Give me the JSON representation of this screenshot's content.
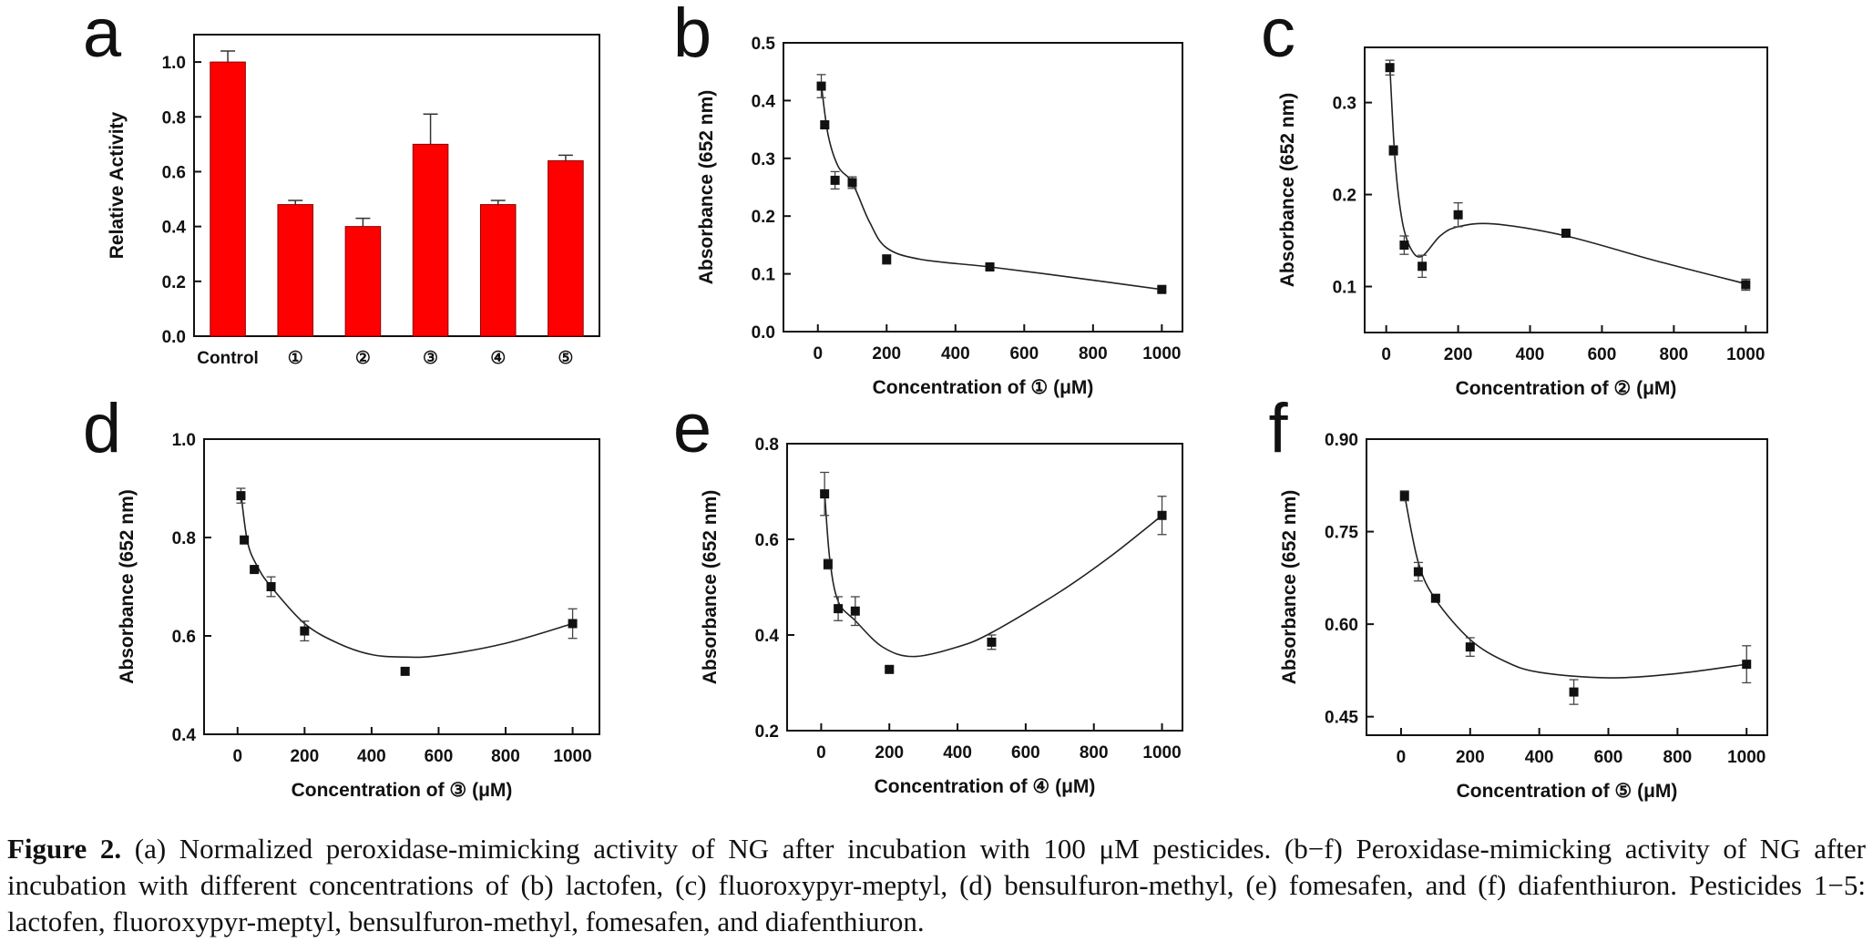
{
  "chart_data": [
    {
      "panel": "a",
      "type": "bar",
      "categories": [
        "Control",
        "①",
        "②",
        "③",
        "④",
        "⑤"
      ],
      "values": [
        1.0,
        0.48,
        0.4,
        0.7,
        0.48,
        0.64
      ],
      "errors": [
        0.04,
        0.015,
        0.03,
        0.11,
        0.015,
        0.02
      ],
      "ylabel": "Relative Activity",
      "xlabel": "",
      "ylim": [
        0,
        1.1
      ],
      "yticks": [
        0.0,
        0.2,
        0.4,
        0.6,
        0.8,
        1.0
      ],
      "bar_color": "#ff0000"
    },
    {
      "panel": "b",
      "type": "scatter",
      "x": [
        10,
        20,
        50,
        100,
        200,
        500,
        1000
      ],
      "y": [
        0.425,
        0.358,
        0.262,
        0.258,
        0.125,
        0.112,
        0.073
      ],
      "errors": [
        0.02,
        0.005,
        0.015,
        0.01,
        0.008,
        0.004,
        0.004
      ],
      "fit": [
        [
          10,
          0.428
        ],
        [
          30,
          0.34
        ],
        [
          60,
          0.285
        ],
        [
          100,
          0.258
        ],
        [
          150,
          0.19
        ],
        [
          200,
          0.145
        ],
        [
          300,
          0.125
        ],
        [
          500,
          0.112
        ],
        [
          750,
          0.093
        ],
        [
          1000,
          0.073
        ]
      ],
      "xlabel": "Concentration of ① (μM)",
      "ylabel": "Absorbance (652 nm)",
      "xlim": [
        -100,
        1060
      ],
      "ylim": [
        0,
        0.5
      ],
      "xticks": [
        0,
        200,
        400,
        600,
        800,
        1000
      ],
      "yticks": [
        0.0,
        0.1,
        0.2,
        0.3,
        0.4,
        0.5
      ]
    },
    {
      "panel": "c",
      "type": "scatter",
      "x": [
        10,
        20,
        50,
        100,
        200,
        500,
        1000
      ],
      "y": [
        0.338,
        0.248,
        0.145,
        0.122,
        0.178,
        0.158,
        0.102
      ],
      "errors": [
        0.008,
        0.005,
        0.01,
        0.012,
        0.013,
        0.004,
        0.006
      ],
      "fit": [
        [
          10,
          0.34
        ],
        [
          25,
          0.235
        ],
        [
          45,
          0.17
        ],
        [
          70,
          0.14
        ],
        [
          100,
          0.133
        ],
        [
          150,
          0.155
        ],
        [
          200,
          0.165
        ],
        [
          300,
          0.168
        ],
        [
          500,
          0.155
        ],
        [
          750,
          0.128
        ],
        [
          1000,
          0.103
        ]
      ],
      "xlabel": "Concentration of ② (μM)",
      "ylabel": "Absorbance (652 nm)",
      "xlim": [
        -60,
        1060
      ],
      "ylim": [
        0.05,
        0.36
      ],
      "xticks": [
        0,
        200,
        400,
        600,
        800,
        1000
      ],
      "yticks": [
        0.1,
        0.2,
        0.3
      ]
    },
    {
      "panel": "d",
      "type": "scatter",
      "x": [
        10,
        20,
        50,
        100,
        200,
        500,
        1000
      ],
      "y": [
        0.885,
        0.795,
        0.735,
        0.7,
        0.61,
        0.528,
        0.625
      ],
      "errors": [
        0.015,
        0.005,
        0.005,
        0.02,
        0.02,
        0.005,
        0.03
      ],
      "fit": [
        [
          10,
          0.89
        ],
        [
          30,
          0.79
        ],
        [
          60,
          0.74
        ],
        [
          100,
          0.7
        ],
        [
          200,
          0.625
        ],
        [
          300,
          0.585
        ],
        [
          400,
          0.562
        ],
        [
          500,
          0.557
        ],
        [
          600,
          0.56
        ],
        [
          800,
          0.585
        ],
        [
          1000,
          0.625
        ]
      ],
      "xlabel": "Concentration of ③ (μM)",
      "ylabel": "Absorbance (652 nm)",
      "xlim": [
        -100,
        1080
      ],
      "ylim": [
        0.4,
        1.0
      ],
      "xticks": [
        0,
        200,
        400,
        600,
        800,
        1000
      ],
      "yticks": [
        0.4,
        0.6,
        0.8,
        1.0
      ]
    },
    {
      "panel": "e",
      "type": "scatter",
      "x": [
        10,
        20,
        50,
        100,
        200,
        500,
        1000
      ],
      "y": [
        0.695,
        0.548,
        0.455,
        0.45,
        0.328,
        0.385,
        0.65
      ],
      "errors": [
        0.045,
        0.01,
        0.025,
        0.03,
        0.005,
        0.015,
        0.04
      ],
      "fit": [
        [
          10,
          0.7
        ],
        [
          25,
          0.56
        ],
        [
          50,
          0.47
        ],
        [
          100,
          0.43
        ],
        [
          180,
          0.375
        ],
        [
          270,
          0.355
        ],
        [
          400,
          0.375
        ],
        [
          500,
          0.405
        ],
        [
          700,
          0.49
        ],
        [
          850,
          0.565
        ],
        [
          1000,
          0.65
        ]
      ],
      "xlabel": "Concentration of ④ (μM)",
      "ylabel": "Absorbance (652 nm)",
      "xlim": [
        -100,
        1060
      ],
      "ylim": [
        0.2,
        0.8
      ],
      "xticks": [
        0,
        200,
        400,
        600,
        800,
        1000
      ],
      "yticks": [
        0.2,
        0.4,
        0.6,
        0.8
      ]
    },
    {
      "panel": "f",
      "type": "scatter",
      "x": [
        10,
        50,
        100,
        200,
        500,
        1000
      ],
      "y": [
        0.808,
        0.685,
        0.642,
        0.563,
        0.49,
        0.535
      ],
      "errors": [
        0.008,
        0.015,
        0.005,
        0.015,
        0.02,
        0.03
      ],
      "fit": [
        [
          10,
          0.81
        ],
        [
          50,
          0.7
        ],
        [
          100,
          0.64
        ],
        [
          200,
          0.575
        ],
        [
          300,
          0.54
        ],
        [
          400,
          0.522
        ],
        [
          600,
          0.513
        ],
        [
          800,
          0.52
        ],
        [
          1000,
          0.535
        ]
      ],
      "xlabel": "Concentration of ⑤ (μM)",
      "ylabel": "Absorbance (652 nm)",
      "xlim": [
        -100,
        1060
      ],
      "ylim": [
        0.42,
        0.9
      ],
      "xticks": [
        0,
        200,
        400,
        600,
        800,
        1000
      ],
      "yticks": [
        0.45,
        0.6,
        0.75,
        0.9
      ]
    }
  ],
  "caption": {
    "label": "Figure 2.",
    "text": "(a) Normalized peroxidase-mimicking activity of NG after incubation with 100 μM pesticides. (b−f) Peroxidase-mimicking activity of NG after incubation with different concentrations of (b) lactofen, (c) fluoroxypyr-meptyl, (d) bensulfuron-methyl, (e) fomesafen, and (f) diafenthiuron. Pesticides 1−5: lactofen, fluoroxypyr-meptyl, bensulfuron-methyl, fomesafen, and diafenthiuron."
  }
}
